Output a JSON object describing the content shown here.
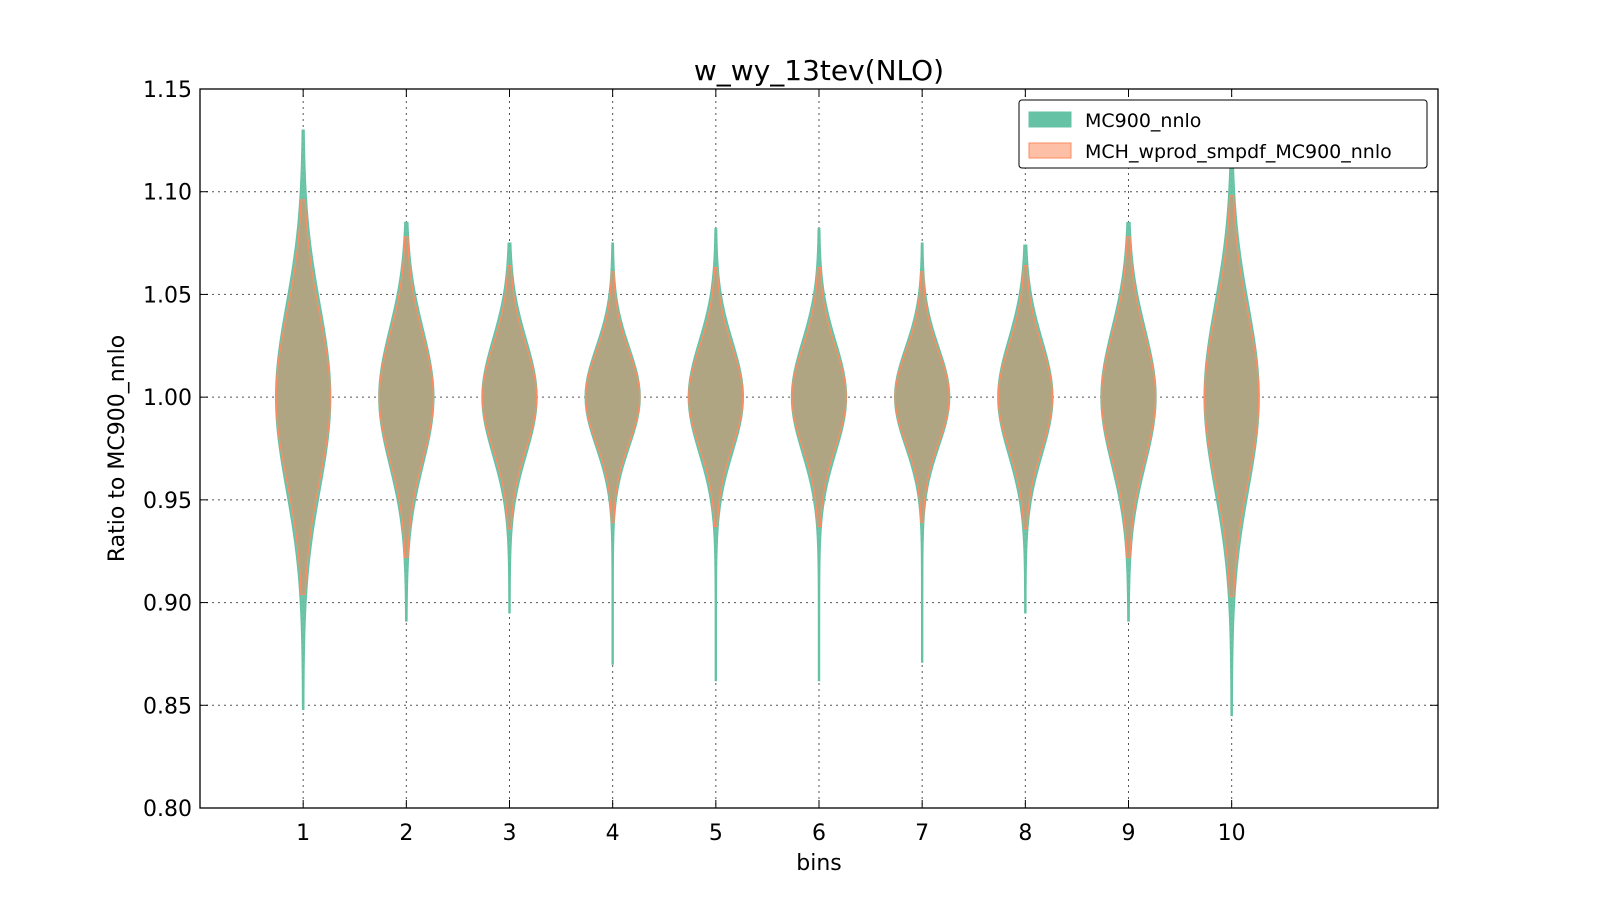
{
  "chart_data": {
    "type": "violin",
    "title": "w_wy_13tev(NLO)",
    "xlabel": "bins",
    "ylabel": "Ratio to MC900_nnlo",
    "ylim": [
      0.8,
      1.15
    ],
    "xlim": [
      0.0,
      12.0
    ],
    "yticks": [
      "0.80",
      "0.85",
      "0.90",
      "0.95",
      "1.00",
      "1.05",
      "1.10",
      "1.15"
    ],
    "ytick_values": [
      0.8,
      0.85,
      0.9,
      0.95,
      1.0,
      1.05,
      1.1,
      1.15
    ],
    "categories": [
      "1",
      "2",
      "3",
      "4",
      "5",
      "6",
      "7",
      "8",
      "9",
      "10"
    ],
    "grid": true,
    "legend_position": "top-right",
    "series": [
      {
        "name": "MC900_nnlo",
        "color": "#66c2a5",
        "edge": "#66c2a5",
        "violins": [
          {
            "min": 0.848,
            "max": 1.13,
            "spread": 0.045,
            "center": 1.0
          },
          {
            "min": 0.891,
            "max": 1.085,
            "spread": 0.033,
            "center": 1.0
          },
          {
            "min": 0.895,
            "max": 1.075,
            "spread": 0.028,
            "center": 1.0
          },
          {
            "min": 0.87,
            "max": 1.075,
            "spread": 0.024,
            "center": 1.0
          },
          {
            "min": 0.862,
            "max": 1.082,
            "spread": 0.027,
            "center": 1.0
          },
          {
            "min": 0.862,
            "max": 1.082,
            "spread": 0.027,
            "center": 1.0
          },
          {
            "min": 0.871,
            "max": 1.075,
            "spread": 0.024,
            "center": 1.0
          },
          {
            "min": 0.895,
            "max": 1.074,
            "spread": 0.028,
            "center": 1.0
          },
          {
            "min": 0.891,
            "max": 1.085,
            "spread": 0.033,
            "center": 1.0
          },
          {
            "min": 0.845,
            "max": 1.13,
            "spread": 0.045,
            "center": 1.0
          }
        ]
      },
      {
        "name": "MCH_wprod_smpdf_MC900_nnlo",
        "color": "#fc8d62",
        "edge": "#fc8d62",
        "violins": [
          {
            "min": 0.904,
            "max": 1.096,
            "spread": 0.04,
            "center": 1.0
          },
          {
            "min": 0.922,
            "max": 1.078,
            "spread": 0.03,
            "center": 1.0
          },
          {
            "min": 0.936,
            "max": 1.064,
            "spread": 0.025,
            "center": 1.0
          },
          {
            "min": 0.939,
            "max": 1.061,
            "spread": 0.022,
            "center": 1.0
          },
          {
            "min": 0.937,
            "max": 1.063,
            "spread": 0.024,
            "center": 1.0
          },
          {
            "min": 0.937,
            "max": 1.063,
            "spread": 0.024,
            "center": 1.0
          },
          {
            "min": 0.939,
            "max": 1.061,
            "spread": 0.022,
            "center": 1.0
          },
          {
            "min": 0.936,
            "max": 1.064,
            "spread": 0.025,
            "center": 1.0
          },
          {
            "min": 0.922,
            "max": 1.078,
            "spread": 0.03,
            "center": 1.0
          },
          {
            "min": 0.903,
            "max": 1.098,
            "spread": 0.04,
            "center": 1.0
          }
        ]
      }
    ],
    "overlap_color": "#b0a582"
  }
}
